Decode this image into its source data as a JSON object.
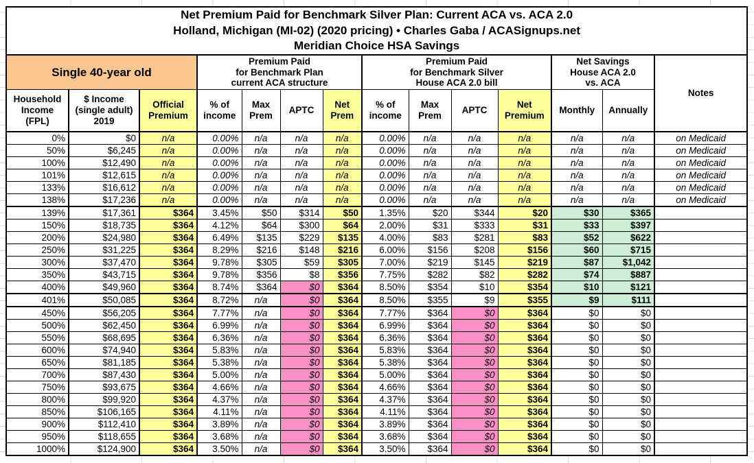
{
  "colors": {
    "yellow": "#ffff9c",
    "pink": "#fa90c5",
    "green": "#cceed6",
    "orange": "#fbc690"
  },
  "header": {
    "demographic": "Single 40-year old",
    "group_aca": "Premium Paid\nfor Benchmark Plan\ncurrent ACA structure",
    "group_aca2": "Premium Paid\nfor Benchmark Silver\nHouse ACA 2.0 bill",
    "group_savings": "Net Savings\nHouse ACA 2.0\nvs. ACA",
    "notes_label": "Notes",
    "columns": [
      "Household\nIncome\n(FPL)",
      "$ Income\n(single adult)\n2019",
      "Official\nPremium",
      "% of\nincome",
      "Max\nPrem",
      "APTC",
      "Net\nPrem",
      "% of\nincome",
      "Max\nPrem",
      "APTC",
      "Net\nPremium",
      "Monthly",
      "Annually"
    ]
  },
  "chart_data": {
    "type": "table",
    "title": "Net Premium Paid for Benchmark Silver Plan: Current ACA vs. ACA 2.0",
    "subtitle": "Holland, Michigan (MI-02) (2020 pricing) • Charles Gaba / ACASignups.net",
    "subtitle2": "Meridian Choice HSA Savings",
    "columns": [
      "Household Income (FPL)",
      "$ Income (single adult) 2019",
      "Official Premium",
      "ACA % of income",
      "ACA Max Prem",
      "ACA APTC",
      "ACA Net Prem",
      "ACA 2.0 % of income",
      "ACA 2.0 Max Prem",
      "ACA 2.0 APTC",
      "ACA 2.0 Net Premium",
      "Savings Monthly",
      "Savings Annually",
      "Notes"
    ],
    "section_breaks_after": [
      "138%",
      "400%",
      "401%"
    ],
    "rows": [
      [
        "0%",
        "$0",
        "n/a",
        "0.00%",
        "n/a",
        "n/a",
        "n/a",
        "0.00%",
        "n/a",
        "n/a",
        "n/a",
        "n/a",
        "n/a",
        "on Medicaid"
      ],
      [
        "50%",
        "$6,245",
        "n/a",
        "0.00%",
        "n/a",
        "n/a",
        "n/a",
        "0.00%",
        "n/a",
        "n/a",
        "n/a",
        "n/a",
        "n/a",
        "on Medicaid"
      ],
      [
        "100%",
        "$12,490",
        "n/a",
        "0.00%",
        "n/a",
        "n/a",
        "n/a",
        "0.00%",
        "n/a",
        "n/a",
        "n/a",
        "n/a",
        "n/a",
        "on Medicaid"
      ],
      [
        "101%",
        "$12,615",
        "n/a",
        "0.00%",
        "n/a",
        "n/a",
        "n/a",
        "0.00%",
        "n/a",
        "n/a",
        "n/a",
        "n/a",
        "n/a",
        "on Medicaid"
      ],
      [
        "133%",
        "$16,612",
        "n/a",
        "0.00%",
        "n/a",
        "n/a",
        "n/a",
        "0.00%",
        "n/a",
        "n/a",
        "n/a",
        "n/a",
        "n/a",
        "on Medicaid"
      ],
      [
        "138%",
        "$17,236",
        "n/a",
        "0.00%",
        "n/a",
        "n/a",
        "n/a",
        "0.00%",
        "n/a",
        "n/a",
        "n/a",
        "n/a",
        "n/a",
        "on Medicaid"
      ],
      [
        "139%",
        "$17,361",
        "$364",
        "3.45%",
        "$50",
        "$314",
        "$50",
        "1.35%",
        "$20",
        "$344",
        "$20",
        "$30",
        "$365",
        ""
      ],
      [
        "150%",
        "$18,735",
        "$364",
        "4.12%",
        "$64",
        "$300",
        "$64",
        "2.00%",
        "$31",
        "$333",
        "$31",
        "$33",
        "$397",
        ""
      ],
      [
        "200%",
        "$24,980",
        "$364",
        "6.49%",
        "$135",
        "$229",
        "$135",
        "4.00%",
        "$83",
        "$281",
        "$83",
        "$52",
        "$622",
        ""
      ],
      [
        "250%",
        "$31,225",
        "$364",
        "8.29%",
        "$216",
        "$148",
        "$216",
        "6.00%",
        "$156",
        "$208",
        "$156",
        "$60",
        "$715",
        ""
      ],
      [
        "300%",
        "$37,470",
        "$364",
        "9.78%",
        "$305",
        "$59",
        "$305",
        "7.00%",
        "$219",
        "$145",
        "$219",
        "$87",
        "$1,042",
        ""
      ],
      [
        "350%",
        "$43,715",
        "$364",
        "9.78%",
        "$356",
        "$8",
        "$356",
        "7.75%",
        "$282",
        "$82",
        "$282",
        "$74",
        "$887",
        ""
      ],
      [
        "400%",
        "$49,960",
        "$364",
        "8.74%",
        "$364",
        "$0",
        "$364",
        "8.50%",
        "$354",
        "$10",
        "$354",
        "$10",
        "$121",
        ""
      ],
      [
        "401%",
        "$50,085",
        "$364",
        "8.72%",
        "n/a",
        "$0",
        "$364",
        "8.50%",
        "$355",
        "$9",
        "$355",
        "$9",
        "$111",
        ""
      ],
      [
        "450%",
        "$56,205",
        "$364",
        "7.77%",
        "n/a",
        "$0",
        "$364",
        "7.77%",
        "$364",
        "$0",
        "$364",
        "$0",
        "$0",
        ""
      ],
      [
        "500%",
        "$62,450",
        "$364",
        "6.99%",
        "n/a",
        "$0",
        "$364",
        "6.99%",
        "$364",
        "$0",
        "$364",
        "$0",
        "$0",
        ""
      ],
      [
        "550%",
        "$68,695",
        "$364",
        "6.36%",
        "n/a",
        "$0",
        "$364",
        "6.36%",
        "$364",
        "$0",
        "$364",
        "$0",
        "$0",
        ""
      ],
      [
        "600%",
        "$74,940",
        "$364",
        "5.83%",
        "n/a",
        "$0",
        "$364",
        "5.83%",
        "$364",
        "$0",
        "$364",
        "$0",
        "$0",
        ""
      ],
      [
        "650%",
        "$81,185",
        "$364",
        "5.38%",
        "n/a",
        "$0",
        "$364",
        "5.38%",
        "$364",
        "$0",
        "$364",
        "$0",
        "$0",
        ""
      ],
      [
        "700%",
        "$87,430",
        "$364",
        "5.00%",
        "n/a",
        "$0",
        "$364",
        "5.00%",
        "$364",
        "$0",
        "$364",
        "$0",
        "$0",
        ""
      ],
      [
        "750%",
        "$93,675",
        "$364",
        "4.66%",
        "n/a",
        "$0",
        "$364",
        "4.66%",
        "$364",
        "$0",
        "$364",
        "$0",
        "$0",
        ""
      ],
      [
        "800%",
        "$99,920",
        "$364",
        "4.37%",
        "n/a",
        "$0",
        "$364",
        "4.37%",
        "$364",
        "$0",
        "$364",
        "$0",
        "$0",
        ""
      ],
      [
        "850%",
        "$106,165",
        "$364",
        "4.11%",
        "n/a",
        "$0",
        "$364",
        "4.11%",
        "$364",
        "$0",
        "$364",
        "$0",
        "$0",
        ""
      ],
      [
        "900%",
        "$112,410",
        "$364",
        "3.89%",
        "n/a",
        "$0",
        "$364",
        "3.89%",
        "$364",
        "$0",
        "$364",
        "$0",
        "$0",
        ""
      ],
      [
        "950%",
        "$118,655",
        "$364",
        "3.68%",
        "n/a",
        "$0",
        "$364",
        "3.68%",
        "$364",
        "$0",
        "$364",
        "$0",
        "$0",
        ""
      ],
      [
        "1000%",
        "$124,900",
        "$364",
        "3.50%",
        "n/a",
        "$0",
        "$364",
        "3.50%",
        "$364",
        "$0",
        "$364",
        "$0",
        "$0",
        ""
      ]
    ]
  }
}
